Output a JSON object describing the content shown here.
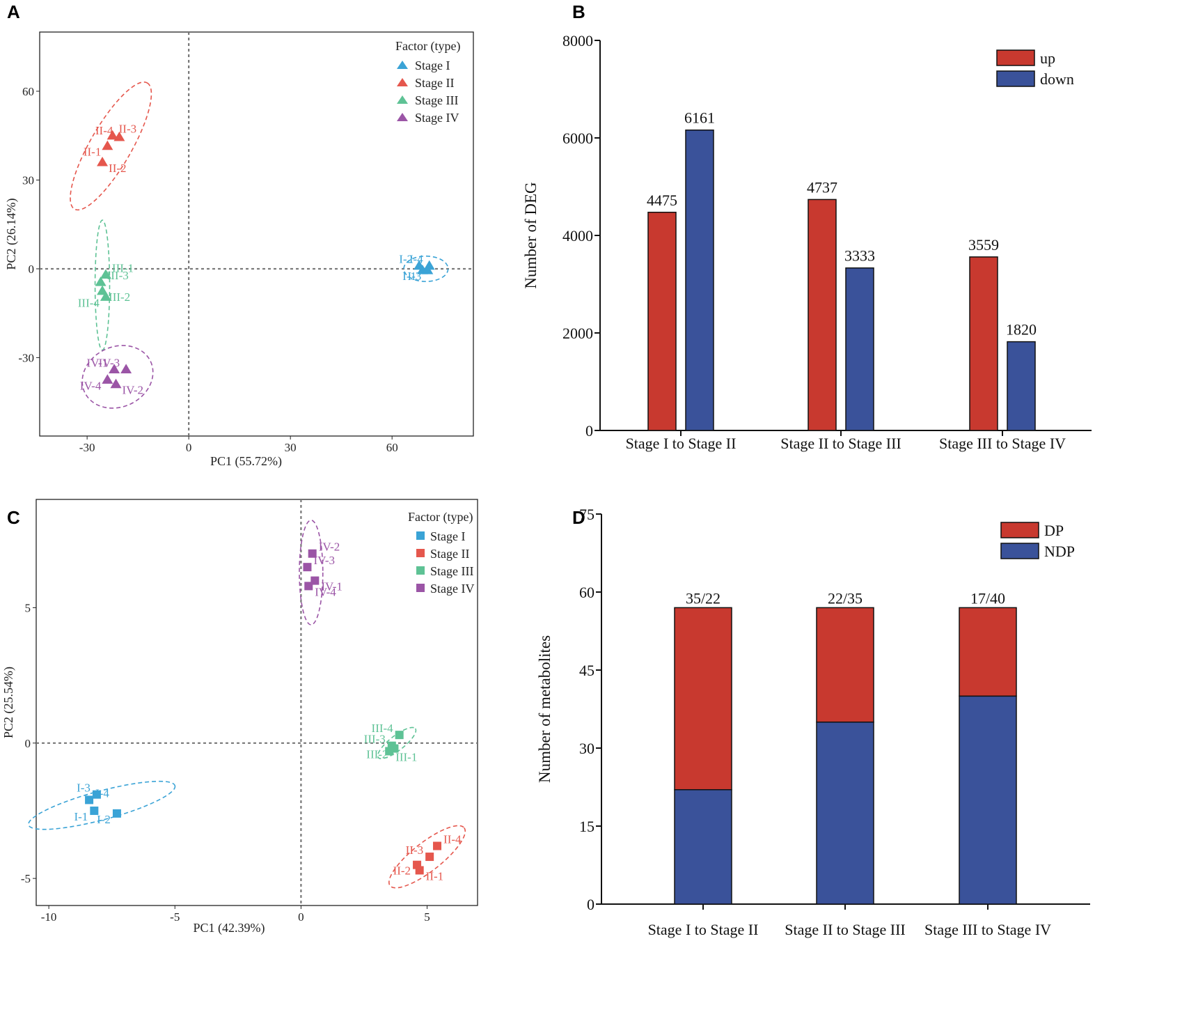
{
  "panels": {
    "a": "A",
    "b": "B",
    "c": "C",
    "d": "D"
  },
  "chart_data": [
    {
      "type": "scatter",
      "id": "A",
      "xlabel": "PC1 (55.72%)",
      "ylabel": "PC2 (26.14%)",
      "xlim": [
        -44,
        84
      ],
      "ylim": [
        -56.5,
        80
      ],
      "xticks": [
        -30,
        0,
        30,
        60
      ],
      "yticks": [
        -30,
        0,
        30,
        60
      ],
      "legend_title": "Factor (type)",
      "marker": "triangle",
      "groups": [
        {
          "name": "Stage I",
          "color": "#3aa3d6",
          "points": [
            {
              "label": "I-2",
              "x": 68,
              "y": 1
            },
            {
              "label": "I-4",
              "x": 71,
              "y": 1
            },
            {
              "label": "I-1",
              "x": 69,
              "y": -0.5
            },
            {
              "label": "I-3",
              "x": 70.5,
              "y": -0.5
            }
          ],
          "ellipse": {
            "cx": 70,
            "cy": 0,
            "rx": 7,
            "ry": 4,
            "angle": 0
          }
        },
        {
          "name": "Stage II",
          "color": "#e5574d",
          "points": [
            {
              "label": "II-3",
              "x": -22.5,
              "y": 45
            },
            {
              "label": "II-4",
              "x": -20.5,
              "y": 44.5
            },
            {
              "label": "II-1",
              "x": -24,
              "y": 41.5
            },
            {
              "label": "II-2",
              "x": -25.5,
              "y": 36
            }
          ],
          "ellipse": {
            "cx": -23,
            "cy": 41.5,
            "rx": 23,
            "ry": 6.5,
            "angle": -60
          }
        },
        {
          "name": "Stage III",
          "color": "#5ec295",
          "points": [
            {
              "label": "III-1",
              "x": -24.5,
              "y": -2
            },
            {
              "label": "III-3",
              "x": -26,
              "y": -4.5
            },
            {
              "label": "III-2",
              "x": -25.5,
              "y": -7.5
            },
            {
              "label": "III-4",
              "x": -24.5,
              "y": -9.5
            }
          ],
          "ellipse": {
            "cx": -25.5,
            "cy": -5.5,
            "rx": 2.3,
            "ry": 20.5,
            "angle": 0
          }
        },
        {
          "name": "Stage IV",
          "color": "#9b55a6",
          "points": [
            {
              "label": "IV-1",
              "x": -22,
              "y": -34
            },
            {
              "label": "IV-3",
              "x": -18.5,
              "y": -34
            },
            {
              "label": "IV-4",
              "x": -24,
              "y": -37.5
            },
            {
              "label": "IV-2",
              "x": -21.5,
              "y": -39
            }
          ],
          "ellipse": {
            "cx": -21,
            "cy": -36.5,
            "rx": 11.5,
            "ry": 9.5,
            "angle": -25
          }
        }
      ]
    },
    {
      "type": "bar",
      "id": "B",
      "ylabel": "Number of DEG",
      "ylim": [
        0,
        8000
      ],
      "yticks": [
        0,
        2000,
        4000,
        6000,
        8000
      ],
      "categories": [
        "Stage I to Stage II",
        "Stage II to Stage III",
        "Stage III to Stage IV"
      ],
      "series": [
        {
          "name": "up",
          "color": "#c8392f",
          "values": [
            4475,
            4737,
            3559
          ]
        },
        {
          "name": "down",
          "color": "#3a529a",
          "values": [
            6161,
            3333,
            1820
          ]
        }
      ],
      "legend": "top-right"
    },
    {
      "type": "scatter",
      "id": "C",
      "xlabel": "PC1 (42.39%)",
      "ylabel": "PC2 (25.54%)",
      "xlim": [
        -10.5,
        7
      ],
      "ylim": [
        -6,
        9
      ],
      "xticks": [
        -10,
        -5,
        0,
        5
      ],
      "yticks": [
        -5,
        0,
        5
      ],
      "legend_title": "Factor (type)",
      "marker": "square",
      "groups": [
        {
          "name": "Stage I",
          "color": "#3aa3d6",
          "points": [
            {
              "label": "I-3",
              "x": -8.1,
              "y": -1.9
            },
            {
              "label": "I-4",
              "x": -8.4,
              "y": -2.1
            },
            {
              "label": "I-1",
              "x": -8.2,
              "y": -2.5
            },
            {
              "label": "I-2",
              "x": -7.3,
              "y": -2.6
            }
          ],
          "ellipse": {
            "cx": -7.9,
            "cy": -2.3,
            "rx": 2.9,
            "ry": 0.55,
            "angle": -15
          }
        },
        {
          "name": "Stage II",
          "color": "#e5574d",
          "points": [
            {
              "label": "II-4",
              "x": 5.4,
              "y": -3.8
            },
            {
              "label": "II-3",
              "x": 5.1,
              "y": -4.2
            },
            {
              "label": "II-2",
              "x": 4.6,
              "y": -4.5
            },
            {
              "label": "II-1",
              "x": 4.7,
              "y": -4.7
            }
          ],
          "ellipse": {
            "cx": 5.0,
            "cy": -4.2,
            "rx": 1.8,
            "ry": 0.55,
            "angle": -38
          }
        },
        {
          "name": "Stage III",
          "color": "#5ec295",
          "points": [
            {
              "label": "III-3",
              "x": 3.6,
              "y": -0.1
            },
            {
              "label": "III-4",
              "x": 3.9,
              "y": 0.3
            },
            {
              "label": "III-2",
              "x": 3.7,
              "y": -0.2
            },
            {
              "label": "III-1",
              "x": 3.5,
              "y": -0.3
            }
          ],
          "ellipse": {
            "cx": 3.8,
            "cy": 0.0,
            "rx": 0.9,
            "ry": 0.28,
            "angle": -38
          }
        },
        {
          "name": "Stage IV",
          "color": "#9b55a6",
          "points": [
            {
              "label": "IV-2",
              "x": 0.45,
              "y": 7.0
            },
            {
              "label": "IV-3",
              "x": 0.25,
              "y": 6.5
            },
            {
              "label": "IV-1",
              "x": 0.55,
              "y": 6.0
            },
            {
              "label": "IV-4",
              "x": 0.3,
              "y": 5.8
            }
          ],
          "ellipse": {
            "cx": 0.4,
            "cy": 6.3,
            "rx": 0.45,
            "ry": 2.0,
            "angle": 0
          }
        }
      ]
    },
    {
      "type": "bar",
      "stacked": true,
      "id": "D",
      "ylabel": "Number of metabolites",
      "ylim": [
        0,
        75
      ],
      "yticks": [
        0,
        15,
        30,
        45,
        60,
        75
      ],
      "categories": [
        "Stage I to Stage II",
        "Stage II to Stage III",
        "Stage III to Stage IV"
      ],
      "series": [
        {
          "name": "DP",
          "color": "#c8392f",
          "values": [
            35,
            22,
            17
          ]
        },
        {
          "name": "NDP",
          "color": "#3a529a",
          "values": [
            22,
            35,
            40
          ]
        }
      ],
      "bar_labels": [
        "35/22",
        "22/35",
        "17/40"
      ],
      "legend": "top-right"
    }
  ]
}
